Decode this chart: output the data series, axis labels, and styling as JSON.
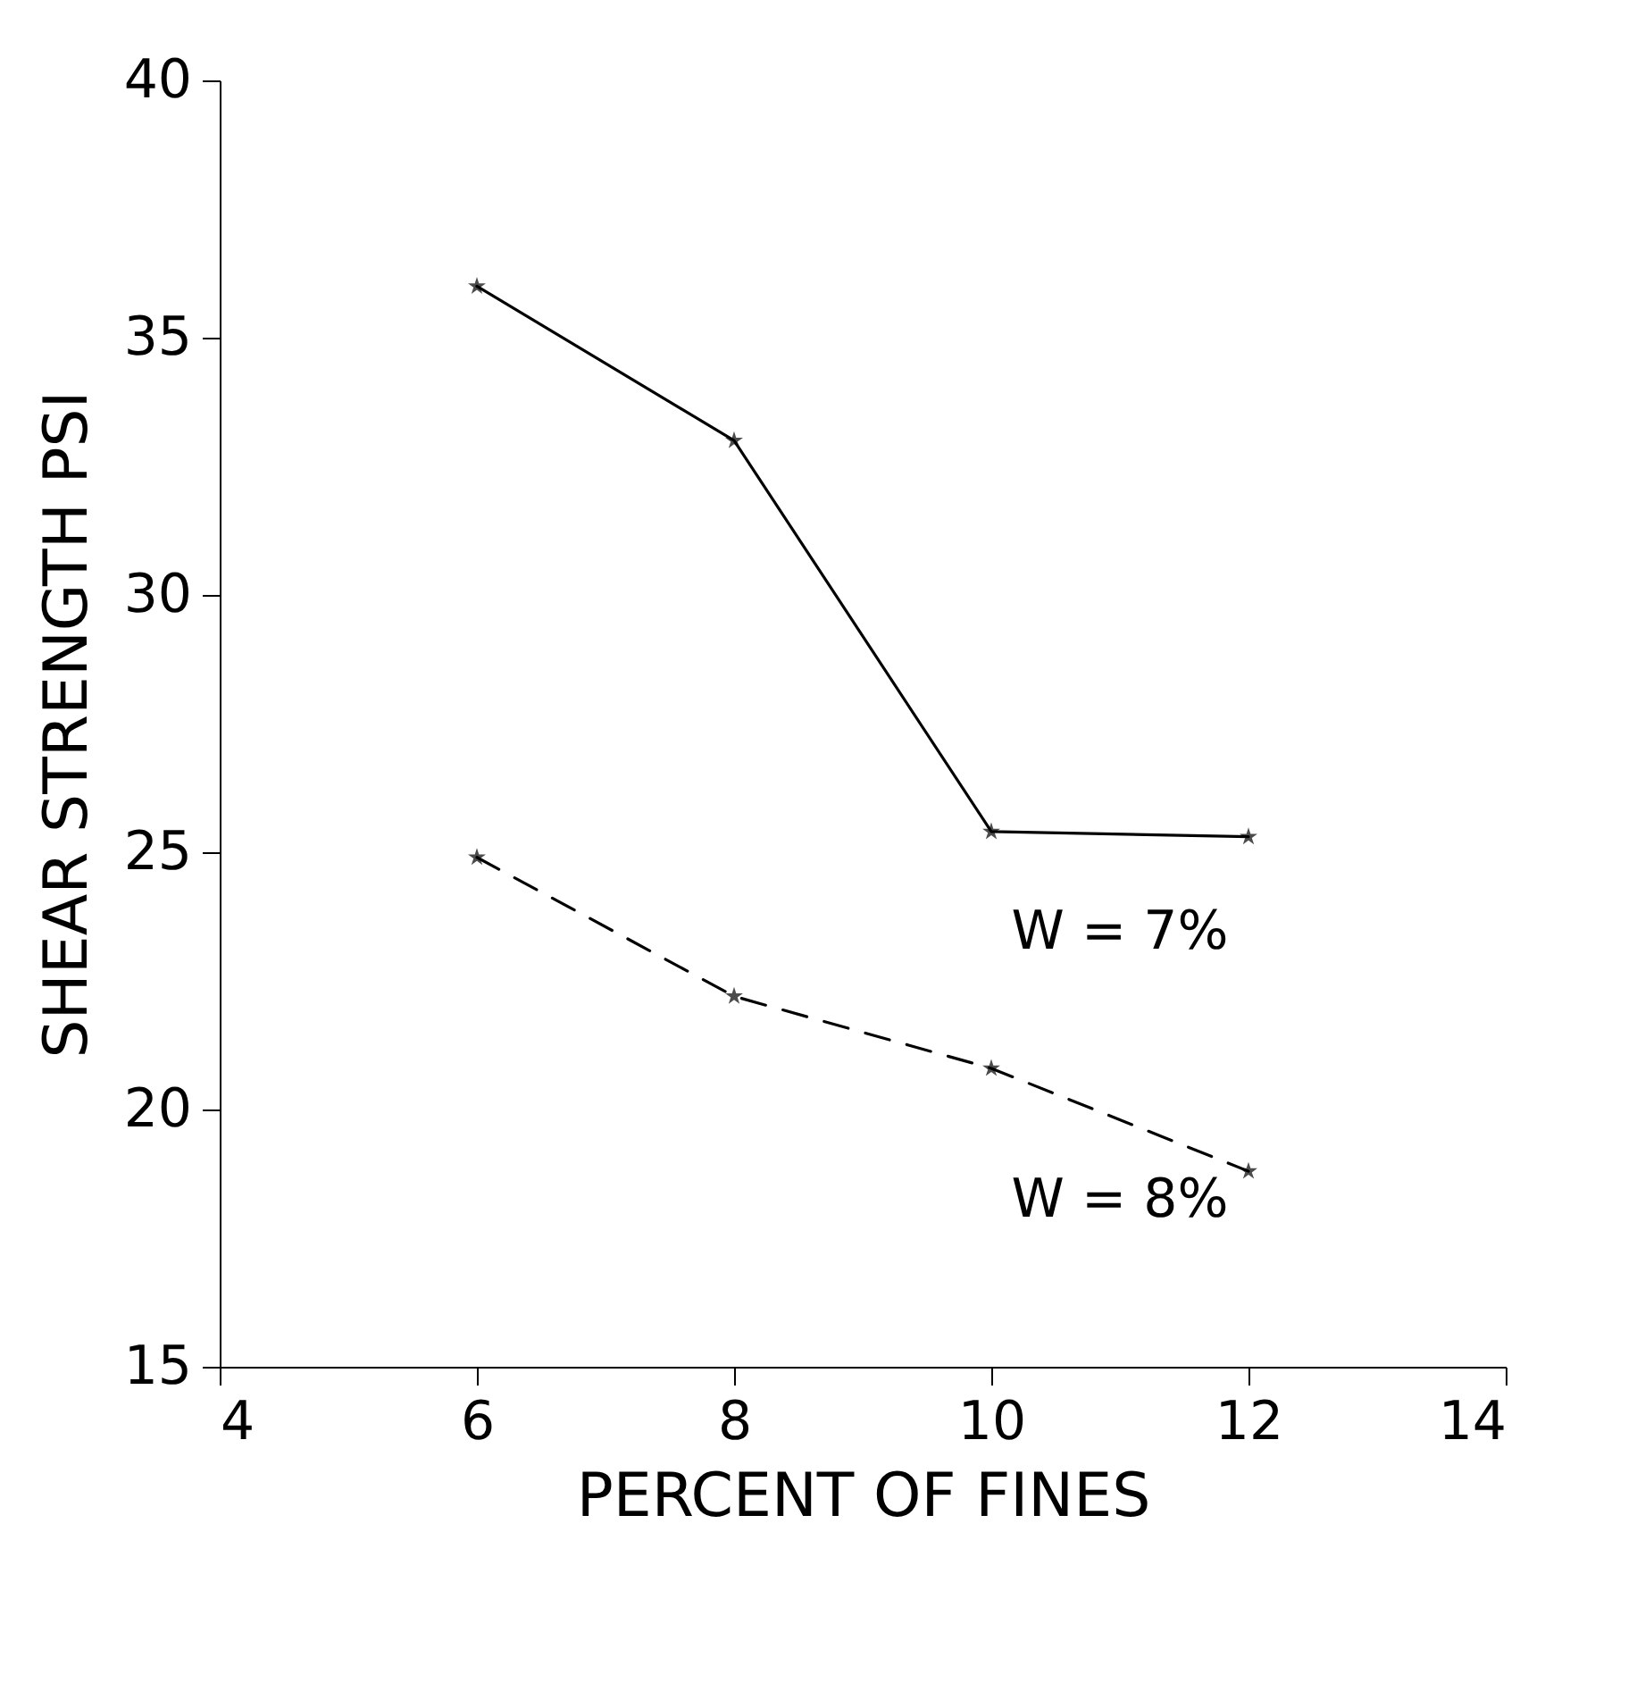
{
  "chart_data": {
    "type": "line",
    "xlabel": "PERCENT OF FINES",
    "ylabel": "SHEAR STRENGTH PSI",
    "x": [
      6,
      8,
      10,
      12
    ],
    "series": [
      {
        "name": "W = 7%",
        "color": "#000000",
        "line_style": "solid",
        "values": [
          36.0,
          33.0,
          25.4,
          25.3
        ]
      },
      {
        "name": "W = 8%",
        "color": "#000000",
        "line_style": "dashed",
        "values": [
          24.9,
          22.2,
          20.8,
          18.8
        ]
      }
    ],
    "xlim": [
      4,
      14
    ],
    "xticks": [
      4,
      6,
      8,
      10,
      12,
      14
    ],
    "ylim": [
      15,
      40
    ],
    "yticks": [
      15,
      20,
      25,
      30,
      35,
      40
    ],
    "marker": "star",
    "grid": false,
    "legend": false
  }
}
